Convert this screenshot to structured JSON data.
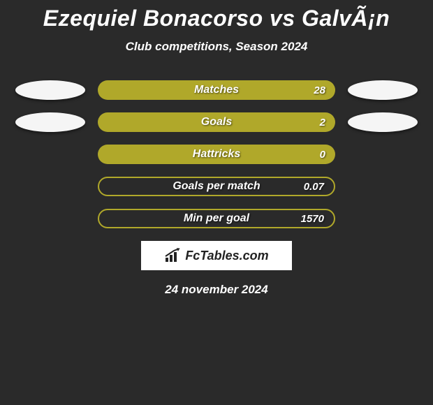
{
  "title": "Ezequiel Bonacorso vs GalvÃ¡n",
  "subtitle": "Club competitions, Season 2024",
  "date": "24 november 2024",
  "logo_text": "FcTables.com",
  "colors": {
    "background": "#2a2a2a",
    "bar_fill": "#b0a82a",
    "bar_border": "#b0a82a",
    "bubble": "#f5f5f5",
    "text": "#ffffff"
  },
  "rows": [
    {
      "label": "Matches",
      "value": "28",
      "filled": true,
      "has_bubbles": true
    },
    {
      "label": "Goals",
      "value": "2",
      "filled": true,
      "has_bubbles": true
    },
    {
      "label": "Hattricks",
      "value": "0",
      "filled": true,
      "has_bubbles": false
    },
    {
      "label": "Goals per match",
      "value": "0.07",
      "filled": false,
      "has_bubbles": false
    },
    {
      "label": "Min per goal",
      "value": "1570",
      "filled": false,
      "has_bubbles": false
    }
  ]
}
